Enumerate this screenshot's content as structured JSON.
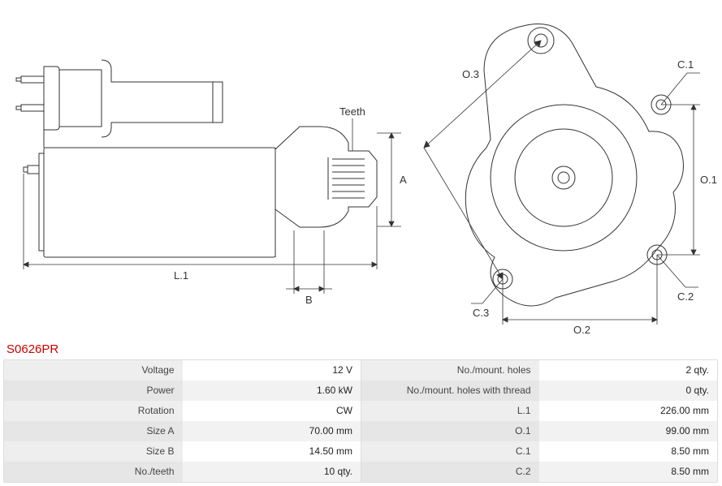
{
  "product_code": "S0626PR",
  "diagram_labels": {
    "teeth": "Teeth",
    "A": "A",
    "B": "B",
    "L1": "L.1",
    "O1": "O.1",
    "O2": "O.2",
    "O3": "O.3",
    "C1": "C.1",
    "C2": "C.2",
    "C3": "C.3"
  },
  "diagram_style": {
    "stroke": "#333333",
    "stroke_width": 1,
    "label_color": "#333333",
    "label_fontsize": 12,
    "background": "#ffffff"
  },
  "specs_left": [
    {
      "label": "Voltage",
      "value": "12 V"
    },
    {
      "label": "Power",
      "value": "1.60 kW"
    },
    {
      "label": "Rotation",
      "value": "CW"
    },
    {
      "label": "Size A",
      "value": "70.00 mm"
    },
    {
      "label": "Size B",
      "value": "14.50 mm"
    },
    {
      "label": "No./teeth",
      "value": "10 qty."
    }
  ],
  "specs_right": [
    {
      "label": "No./mount. holes",
      "value": "2 qty."
    },
    {
      "label": "No./mount. holes with thread",
      "value": "0 qty."
    },
    {
      "label": "L.1",
      "value": "226.00 mm"
    },
    {
      "label": "O.1",
      "value": "99.00 mm"
    },
    {
      "label": "C.1",
      "value": "8.50 mm"
    },
    {
      "label": "C.2",
      "value": "8.50 mm"
    }
  ]
}
